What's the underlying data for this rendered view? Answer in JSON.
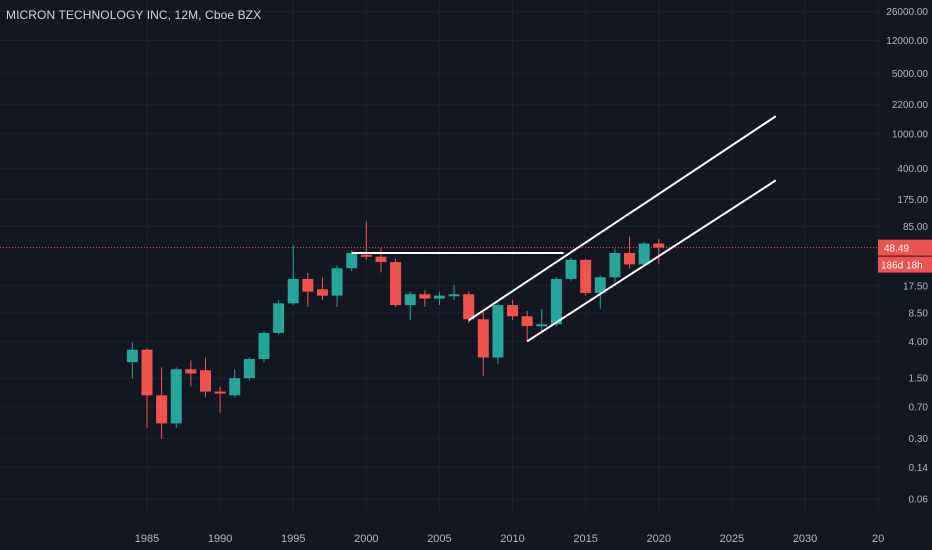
{
  "header": {
    "symbol_title": "MICRON TECHNOLOGY INC, 12M, Cboe BZX"
  },
  "price_badge": {
    "price": "48.49",
    "countdown": "186d 18h"
  },
  "colors": {
    "background": "#131722",
    "grid": "#1e222d",
    "up": "#26a69a",
    "down": "#ef5350",
    "lines": "#ffffff",
    "axis_text": "#b2b5be",
    "last_price_line": "#ef5350"
  },
  "chart_data": {
    "type": "candlestick",
    "title": "MICRON TECHNOLOGY INC, 12M, Cboe BZX",
    "y_scale": "log",
    "y_ticks": [
      "26000.00",
      "12000.00",
      "5000.00",
      "2200.00",
      "1000.00",
      "400.00",
      "175.00",
      "85.00",
      "17.50",
      "8.50",
      "4.00",
      "1.50",
      "0.70",
      "0.30",
      "0.14",
      "0.06"
    ],
    "x_ticks": [
      "1985",
      "1990",
      "1995",
      "2000",
      "2005",
      "2010",
      "2015",
      "2020",
      "2025",
      "2030",
      "20"
    ],
    "candles": [
      {
        "year": 1984,
        "open": 2.3,
        "high": 3.9,
        "low": 1.5,
        "close": 3.2
      },
      {
        "year": 1985,
        "open": 3.2,
        "high": 3.3,
        "low": 0.4,
        "close": 0.95
      },
      {
        "year": 1986,
        "open": 0.95,
        "high": 2.0,
        "low": 0.3,
        "close": 0.45
      },
      {
        "year": 1987,
        "open": 0.45,
        "high": 2.0,
        "low": 0.4,
        "close": 1.9
      },
      {
        "year": 1988,
        "open": 1.9,
        "high": 2.4,
        "low": 1.2,
        "close": 1.7
      },
      {
        "year": 1989,
        "open": 1.85,
        "high": 2.6,
        "low": 0.9,
        "close": 1.05
      },
      {
        "year": 1990,
        "open": 1.05,
        "high": 1.2,
        "low": 0.6,
        "close": 1.0
      },
      {
        "year": 1991,
        "open": 0.95,
        "high": 1.9,
        "low": 0.9,
        "close": 1.5
      },
      {
        "year": 1992,
        "open": 1.5,
        "high": 2.6,
        "low": 1.4,
        "close": 2.5
      },
      {
        "year": 1993,
        "open": 2.5,
        "high": 5.2,
        "low": 2.3,
        "close": 5.0
      },
      {
        "year": 1994,
        "open": 5.0,
        "high": 12.0,
        "low": 4.8,
        "close": 11.0
      },
      {
        "year": 1995,
        "open": 11.0,
        "high": 52.0,
        "low": 10.5,
        "close": 21.0
      },
      {
        "year": 1996,
        "open": 21.0,
        "high": 25.0,
        "low": 10.0,
        "close": 15.0
      },
      {
        "year": 1997,
        "open": 16.0,
        "high": 22.0,
        "low": 12.0,
        "close": 13.5
      },
      {
        "year": 1998,
        "open": 13.5,
        "high": 30.0,
        "low": 10.0,
        "close": 28.0
      },
      {
        "year": 1999,
        "open": 28.0,
        "high": 45.0,
        "low": 26.0,
        "close": 42.0
      },
      {
        "year": 2000,
        "open": 40.0,
        "high": 97.0,
        "low": 35.0,
        "close": 38.0
      },
      {
        "year": 2001,
        "open": 38.0,
        "high": 48.0,
        "low": 25.0,
        "close": 33.0
      },
      {
        "year": 2002,
        "open": 33.0,
        "high": 36.0,
        "low": 10.0,
        "close": 10.5
      },
      {
        "year": 2003,
        "open": 10.5,
        "high": 15.0,
        "low": 7.0,
        "close": 14.0
      },
      {
        "year": 2004,
        "open": 14.0,
        "high": 15.5,
        "low": 10.0,
        "close": 12.5
      },
      {
        "year": 2005,
        "open": 12.5,
        "high": 15.0,
        "low": 10.5,
        "close": 13.5
      },
      {
        "year": 2006,
        "open": 13.5,
        "high": 18.0,
        "low": 12.0,
        "close": 14.0
      },
      {
        "year": 2007,
        "open": 14.0,
        "high": 15.0,
        "low": 6.5,
        "close": 7.2
      },
      {
        "year": 2008,
        "open": 7.2,
        "high": 8.7,
        "low": 1.6,
        "close": 2.6
      },
      {
        "year": 2009,
        "open": 2.6,
        "high": 11.0,
        "low": 2.2,
        "close": 10.5
      },
      {
        "year": 2010,
        "open": 10.5,
        "high": 12.0,
        "low": 7.0,
        "close": 7.8
      },
      {
        "year": 2011,
        "open": 7.8,
        "high": 9.0,
        "low": 4.0,
        "close": 6.0
      },
      {
        "year": 2012,
        "open": 6.0,
        "high": 9.5,
        "low": 5.0,
        "close": 6.3
      },
      {
        "year": 2013,
        "open": 6.3,
        "high": 22.0,
        "low": 6.0,
        "close": 21.0
      },
      {
        "year": 2014,
        "open": 21.0,
        "high": 37.0,
        "low": 20.0,
        "close": 35.0
      },
      {
        "year": 2015,
        "open": 35.0,
        "high": 36.0,
        "low": 13.5,
        "close": 14.5
      },
      {
        "year": 2016,
        "open": 14.5,
        "high": 23.0,
        "low": 9.5,
        "close": 22.0
      },
      {
        "year": 2017,
        "open": 22.0,
        "high": 47.0,
        "low": 19.5,
        "close": 42.0
      },
      {
        "year": 2018,
        "open": 42.0,
        "high": 65.0,
        "low": 28.0,
        "close": 31.0
      },
      {
        "year": 2019,
        "open": 31.0,
        "high": 56.0,
        "low": 30.0,
        "close": 54.0
      },
      {
        "year": 2020,
        "open": 54.0,
        "high": 61.0,
        "low": 31.0,
        "close": 48.49
      }
    ],
    "trend_lines": [
      {
        "from": {
          "year": 1999,
          "value": 42
        },
        "to": {
          "year": 2013.5,
          "value": 42
        }
      },
      {
        "from": {
          "year": 2007,
          "value": 7.0
        },
        "to": {
          "year": 2028,
          "value": 1600
        }
      },
      {
        "from": {
          "year": 2011,
          "value": 4.0
        },
        "to": {
          "year": 2028,
          "value": 290
        }
      }
    ],
    "last_price": 48.49,
    "grid": true
  }
}
